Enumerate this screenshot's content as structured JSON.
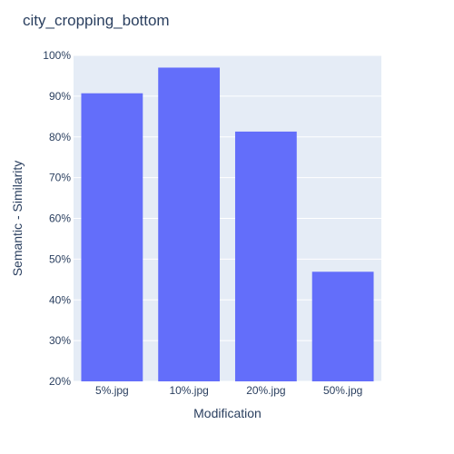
{
  "chart_data": {
    "type": "bar",
    "title": "city_cropping_bottom",
    "xlabel": "Modification",
    "ylabel": "Semantic - Similarity",
    "categories": [
      "5%.jpg",
      "10%.jpg",
      "20%.jpg",
      "50%.jpg"
    ],
    "values": [
      0.907,
      0.97,
      0.813,
      0.469
    ],
    "ylim": [
      0.2,
      1.0
    ],
    "yticks": [
      0.2,
      0.3,
      0.4,
      0.5,
      0.6,
      0.7,
      0.8,
      0.9,
      1.0
    ],
    "ytick_labels": [
      "20%",
      "30%",
      "40%",
      "50%",
      "60%",
      "70%",
      "80%",
      "90%",
      "100%"
    ],
    "grid": true,
    "colors": {
      "bar": "#636efa",
      "plot_bg": "#e5ecf6",
      "grid": "#ffffff",
      "text": "#2a3f5f"
    }
  }
}
